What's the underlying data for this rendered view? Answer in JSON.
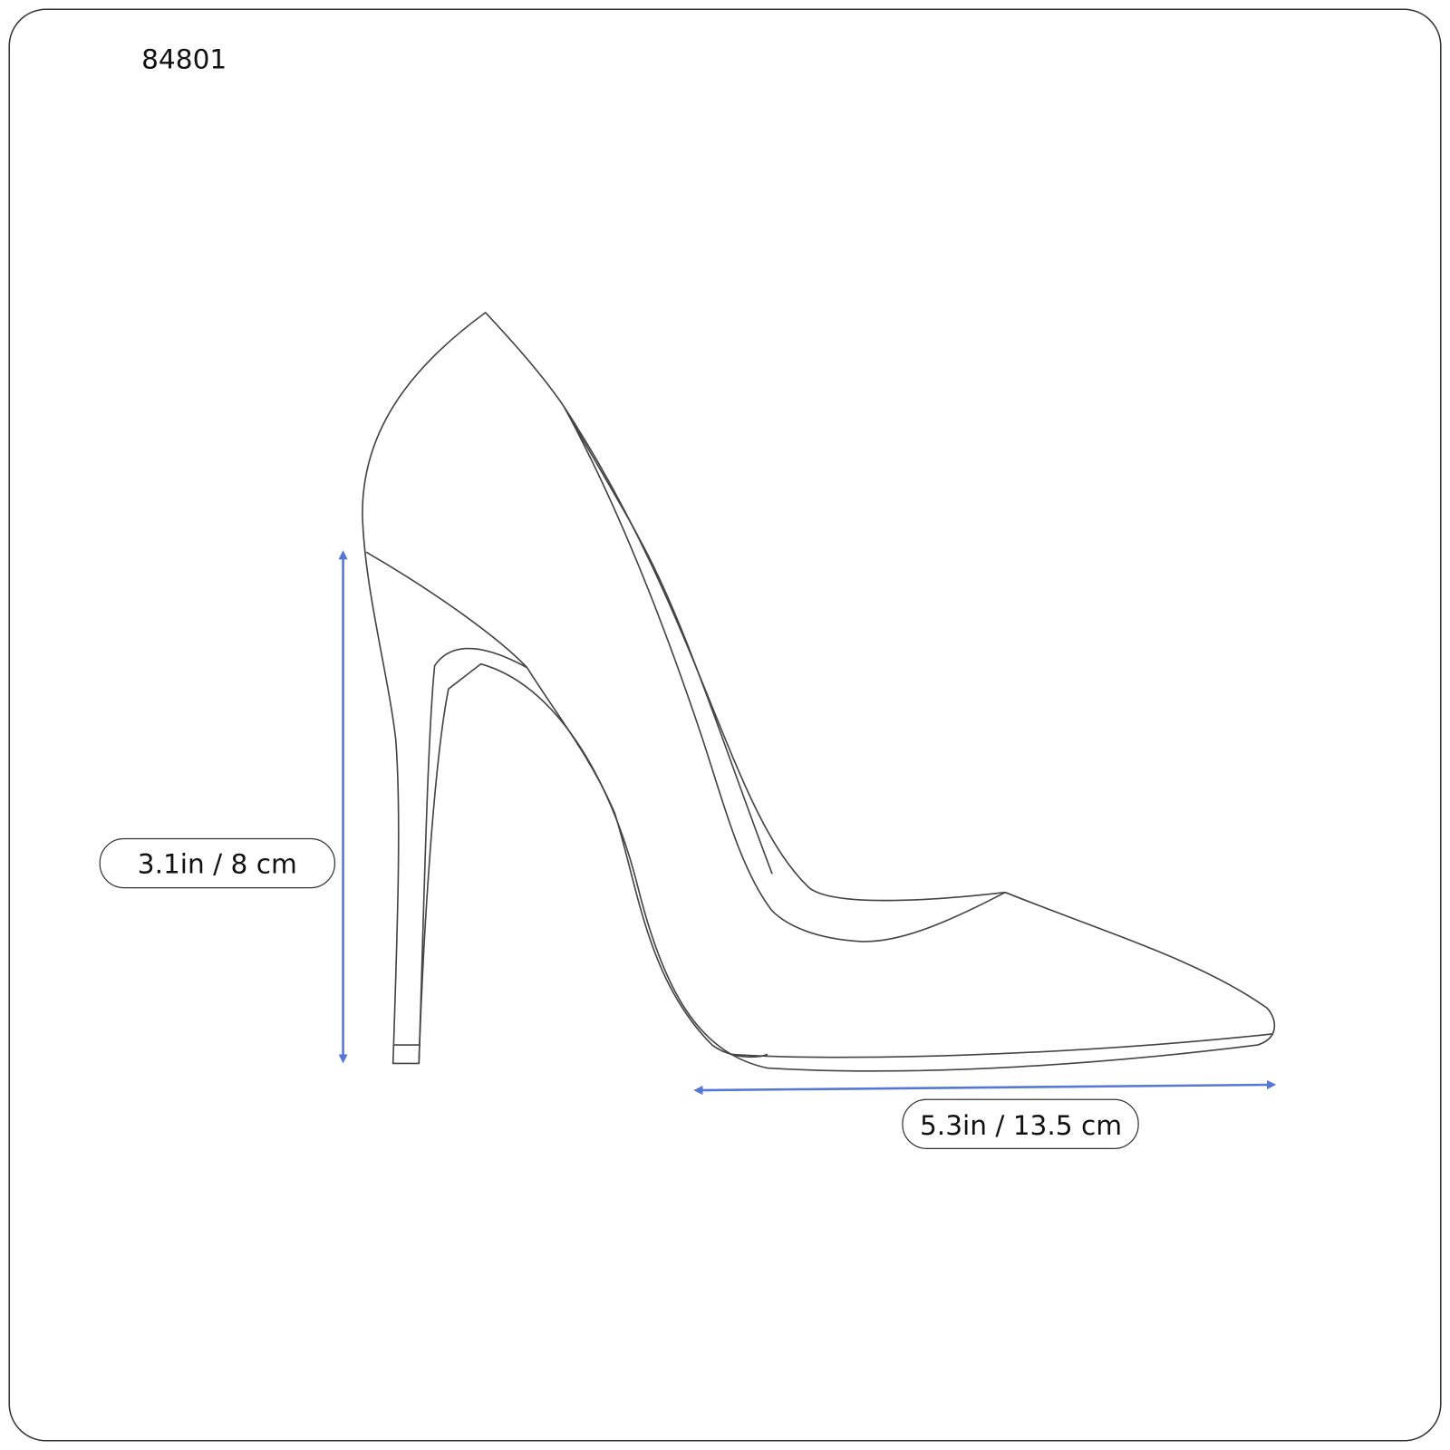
{
  "product_code": "84801",
  "dimensions": {
    "heel_height": "3.1in / 8 cm",
    "length": "5.3in / 13.5 cm"
  },
  "colors": {
    "arrow": "#5577d6",
    "outline": "#444444",
    "frame": "#333333"
  },
  "icons": [
    "high-heel-shoe-outline",
    "vertical-arrow",
    "horizontal-arrow"
  ]
}
